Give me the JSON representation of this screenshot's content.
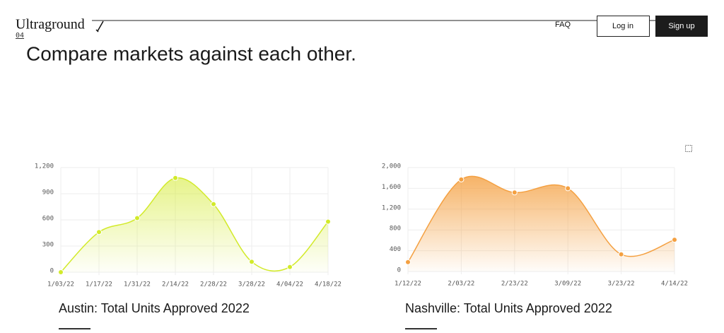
{
  "header": {
    "logo": "Ultraground",
    "badge": "04",
    "nav": [
      "FAQ"
    ],
    "login": "Log in",
    "signup": "Sign up"
  },
  "headline": "Compare markets against each other.",
  "chart_data": [
    {
      "type": "line",
      "title": "Austin: Total Units Approved 2022",
      "categories": [
        "1/03/22",
        "1/17/22",
        "1/31/22",
        "2/14/22",
        "2/28/22",
        "3/28/22",
        "4/04/22",
        "4/18/22"
      ],
      "values": [
        0,
        460,
        620,
        1080,
        780,
        120,
        60,
        580
      ],
      "color": "#d2ea2a",
      "ylim": [
        0,
        1200
      ],
      "yticks": [
        0,
        300,
        600,
        900,
        {
          "value": 1200,
          "label": "1,200"
        }
      ],
      "grid": true
    },
    {
      "type": "line",
      "title": "Nashville: Total Units Approved 2022",
      "categories": [
        "1/12/22",
        "2/03/22",
        "2/23/22",
        "3/09/22",
        "3/23/22",
        "4/14/22"
      ],
      "values": [
        180,
        1770,
        1520,
        1600,
        330,
        610
      ],
      "color": "#f4a041",
      "ylim": [
        0,
        2000
      ],
      "yticks": [
        0,
        400,
        800,
        {
          "value": 1200,
          "label": "1,200"
        },
        {
          "value": 1600,
          "label": "1,600"
        },
        {
          "value": 2000,
          "label": "2,000"
        }
      ],
      "grid": true
    }
  ]
}
